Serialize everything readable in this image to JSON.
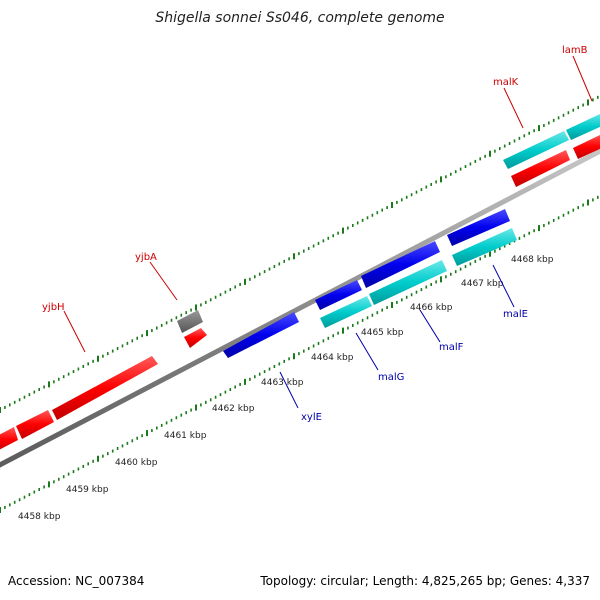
{
  "title": "Shigella sonnei Ss046, complete genome",
  "footer": {
    "accession": "Accession: NC_007384",
    "summary": "Topology: circular; Length: 4,825,265 bp; Genes: 4,337"
  },
  "colors": {
    "red": "#ff0000",
    "blue": "#0000ee",
    "cyan": "#00cccc",
    "gray": "#666666",
    "tick": "#1a7a1a",
    "backbone": "#888888",
    "red_label": "#cc0000",
    "blue_label": "#0000aa"
  },
  "tick_labels": [
    {
      "kbp": 4458,
      "text": "4458 kbp"
    },
    {
      "kbp": 4459,
      "text": "4459 kbp"
    },
    {
      "kbp": 4460,
      "text": "4460 kbp"
    },
    {
      "kbp": 4461,
      "text": "4461 kbp"
    },
    {
      "kbp": 4462,
      "text": "4462 kbp"
    },
    {
      "kbp": 4463,
      "text": "4463 kbp"
    },
    {
      "kbp": 4464,
      "text": "4464 kbp"
    },
    {
      "kbp": 4465,
      "text": "4465 kbp"
    },
    {
      "kbp": 4466,
      "text": "4466 kbp"
    },
    {
      "kbp": 4467,
      "text": "4467 kbp"
    },
    {
      "kbp": 4468,
      "text": "4468 kbp"
    }
  ],
  "labels": [
    {
      "id": "yjbH",
      "text": "yjbH",
      "color": "red"
    },
    {
      "id": "yjbA",
      "text": "yjbA",
      "color": "red"
    },
    {
      "id": "malK",
      "text": "malK",
      "color": "red"
    },
    {
      "id": "lamB",
      "text": "lamB",
      "color": "red"
    },
    {
      "id": "xylE",
      "text": "xylE",
      "color": "blue"
    },
    {
      "id": "malG",
      "text": "malG",
      "color": "blue"
    },
    {
      "id": "malF",
      "text": "malF",
      "color": "blue"
    },
    {
      "id": "malE",
      "text": "malE",
      "color": "blue"
    }
  ]
}
